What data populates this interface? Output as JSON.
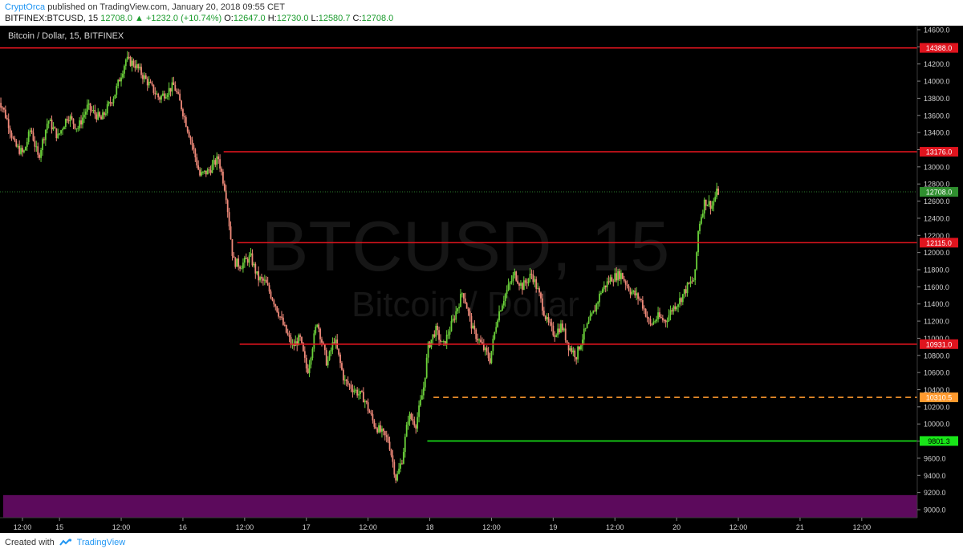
{
  "header": {
    "author": "CryptOrca",
    "published_text": "published on TradingView.com, January 20, 2018 09:55 CET",
    "symbol_line": "BITFINEX:BTCUSD, 15",
    "last_price": "12708.0",
    "change_arrow": "▲",
    "change_text": "+1232.0 (+10.74%)",
    "open_label": "O:",
    "open_value": "12647.0",
    "high_label": "H:",
    "high_value": "12730.0",
    "low_label": "L:",
    "low_value": "12580.7",
    "close_label": "C:",
    "close_value": "12708.0"
  },
  "footer": {
    "created_with": "Created with",
    "brand": "TradingView"
  },
  "colors": {
    "background": "#000000",
    "resistance": "#e0141e",
    "support_green": "#19e619",
    "dashed_orange": "#ff9a2e",
    "zone_purple": "#5c0a5c",
    "candle_up": "#6bd13a",
    "candle_down": "#f08a7a",
    "price_line": "#2d7a2d"
  },
  "chart_data": {
    "type": "candlestick",
    "title": "Bitcoin / Dollar, 15, BITFINEX",
    "watermark_symbol": "BTCUSD, 15",
    "watermark_name": "Bitcoin / Dollar",
    "ylim": [
      8900,
      14700
    ],
    "y_ticks": [
      9000,
      9200,
      9400,
      9600,
      9800,
      10000,
      10200,
      10400,
      10600,
      10800,
      11000,
      11200,
      11400,
      11600,
      11800,
      12000,
      12200,
      12400,
      12600,
      12800,
      13000,
      13200,
      13400,
      13600,
      13800,
      14000,
      14200,
      14400,
      14600
    ],
    "y_tick_labels": [
      "9000.0",
      "9200.0",
      "9400.0",
      "9600.0",
      "9800.0",
      "10000.0",
      "10200.0",
      "10400.0",
      "10600.0",
      "10800.0",
      "11000.0",
      "11200.0",
      "11400.0",
      "11600.0",
      "11800.0",
      "12000.0",
      "12200.0",
      "12400.0",
      "12600.0",
      "12800.0",
      "13000.0",
      "13200.0",
      "13400.0",
      "13600.0",
      "13800.0",
      "14000.0",
      "14200.0",
      "14400.0",
      "14600.0"
    ],
    "x_ticks": [
      {
        "label": "12:00",
        "t": 0.7
      },
      {
        "label": "15",
        "t": 1.0
      },
      {
        "label": "12:00",
        "t": 1.5
      },
      {
        "label": "16",
        "t": 2.0
      },
      {
        "label": "12:00",
        "t": 2.5
      },
      {
        "label": "17",
        "t": 3.0
      },
      {
        "label": "12:00",
        "t": 3.5
      },
      {
        "label": "18",
        "t": 4.0
      },
      {
        "label": "12:00",
        "t": 4.5
      },
      {
        "label": "19",
        "t": 5.0
      },
      {
        "label": "12:00",
        "t": 5.5
      },
      {
        "label": "20",
        "t": 6.0
      },
      {
        "label": "12:00",
        "t": 6.5
      },
      {
        "label": "21",
        "t": 7.0
      },
      {
        "label": "12:00",
        "t": 7.5
      }
    ],
    "levels": [
      {
        "name": "resistance-14388",
        "value": 14388.0,
        "label": "14388.0",
        "kind": "red",
        "t_start": 0.5
      },
      {
        "name": "resistance-13176",
        "value": 13176.0,
        "label": "13176.0",
        "kind": "red",
        "t_start": 2.33
      },
      {
        "name": "resistance-12115",
        "value": 12115.0,
        "label": "12115.0",
        "kind": "red",
        "t_start": 2.44
      },
      {
        "name": "support-10931",
        "value": 10931.0,
        "label": "10931.0",
        "kind": "red",
        "t_start": 2.46
      },
      {
        "name": "dashed-10310",
        "value": 10310.5,
        "label": "10310.5",
        "kind": "orange-dashed",
        "t_start": 4.03
      },
      {
        "name": "support-9801",
        "value": 9801.3,
        "label": "9801.3",
        "kind": "green",
        "t_start": 3.98
      }
    ],
    "last_price": {
      "value": 12708.0,
      "label": "12708.0"
    },
    "zone": {
      "from": 8900,
      "to": 9170
    },
    "path_anchors": [
      [
        0.5,
        13850
      ],
      [
        0.55,
        13700
      ],
      [
        0.6,
        13500
      ],
      [
        0.65,
        13250
      ],
      [
        0.72,
        13150
      ],
      [
        0.78,
        13450
      ],
      [
        0.84,
        13100
      ],
      [
        0.92,
        13550
      ],
      [
        1.0,
        13350
      ],
      [
        1.08,
        13600
      ],
      [
        1.16,
        13450
      ],
      [
        1.24,
        13700
      ],
      [
        1.35,
        13550
      ],
      [
        1.46,
        13850
      ],
      [
        1.55,
        14250
      ],
      [
        1.62,
        14200
      ],
      [
        1.72,
        14000
      ],
      [
        1.82,
        13800
      ],
      [
        1.94,
        13950
      ],
      [
        2.0,
        13700
      ],
      [
        2.08,
        13300
      ],
      [
        2.15,
        12900
      ],
      [
        2.22,
        12950
      ],
      [
        2.3,
        13100
      ],
      [
        2.36,
        12700
      ],
      [
        2.42,
        11900
      ],
      [
        2.48,
        11850
      ],
      [
        2.56,
        11950
      ],
      [
        2.62,
        11700
      ],
      [
        2.68,
        11650
      ],
      [
        2.76,
        11400
      ],
      [
        2.84,
        11100
      ],
      [
        2.9,
        10900
      ],
      [
        2.96,
        11000
      ],
      [
        3.02,
        10600
      ],
      [
        3.1,
        11200
      ],
      [
        3.18,
        10700
      ],
      [
        3.24,
        11000
      ],
      [
        3.32,
        10500
      ],
      [
        3.4,
        10400
      ],
      [
        3.48,
        10300
      ],
      [
        3.56,
        10000
      ],
      [
        3.62,
        9900
      ],
      [
        3.68,
        9800
      ],
      [
        3.74,
        9350
      ],
      [
        3.79,
        9600
      ],
      [
        3.84,
        10100
      ],
      [
        3.9,
        10000
      ],
      [
        3.96,
        10400
      ],
      [
        4.0,
        10900
      ],
      [
        4.06,
        11100
      ],
      [
        4.12,
        10900
      ],
      [
        4.2,
        11200
      ],
      [
        4.28,
        11550
      ],
      [
        4.36,
        11100
      ],
      [
        4.44,
        10900
      ],
      [
        4.5,
        10750
      ],
      [
        4.56,
        11250
      ],
      [
        4.62,
        11500
      ],
      [
        4.7,
        11750
      ],
      [
        4.76,
        11600
      ],
      [
        4.84,
        11750
      ],
      [
        4.9,
        11500
      ],
      [
        4.96,
        11200
      ],
      [
        5.02,
        11050
      ],
      [
        5.08,
        11150
      ],
      [
        5.14,
        10900
      ],
      [
        5.2,
        10800
      ],
      [
        5.26,
        11050
      ],
      [
        5.34,
        11300
      ],
      [
        5.4,
        11550
      ],
      [
        5.48,
        11700
      ],
      [
        5.56,
        11750
      ],
      [
        5.64,
        11550
      ],
      [
        5.72,
        11450
      ],
      [
        5.8,
        11150
      ],
      [
        5.86,
        11250
      ],
      [
        5.92,
        11200
      ],
      [
        5.98,
        11350
      ],
      [
        6.04,
        11450
      ],
      [
        6.1,
        11600
      ],
      [
        6.16,
        11700
      ],
      [
        6.19,
        12300
      ],
      [
        6.24,
        12600
      ],
      [
        6.3,
        12550
      ],
      [
        6.34,
        12708
      ]
    ]
  }
}
